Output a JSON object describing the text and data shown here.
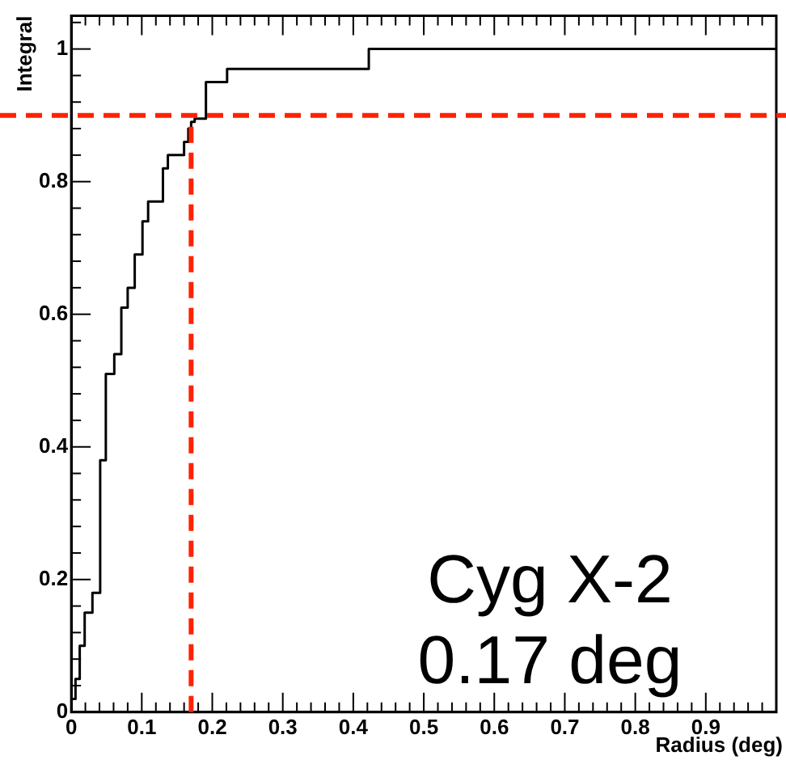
{
  "chart_data": {
    "type": "step",
    "xlabel": "Radius (deg)",
    "ylabel": "Integral",
    "x": [
      0,
      0.006,
      0.012,
      0.019,
      0.03,
      0.041,
      0.049,
      0.061,
      0.071,
      0.08,
      0.09,
      0.101,
      0.109,
      0.13,
      0.137,
      0.16,
      0.166,
      0.17,
      0.175,
      0.191,
      0.221,
      0.422,
      1.0
    ],
    "series": [
      {
        "color": "#000000",
        "values": [
          0.02,
          0.05,
          0.1,
          0.15,
          0.18,
          0.38,
          0.51,
          0.54,
          0.61,
          0.64,
          0.69,
          0.74,
          0.77,
          0.82,
          0.84,
          0.86,
          0.88,
          0.89,
          0.895,
          0.95,
          0.97,
          1.0,
          1.0
        ]
      }
    ],
    "xlim": [
      0,
      1
    ],
    "xticks": [
      0,
      0.1,
      0.2,
      0.3,
      0.4,
      0.5,
      0.6,
      0.7,
      0.8,
      0.9
    ],
    "ylim": [
      0,
      1.05
    ],
    "yticks": [
      0,
      0.2,
      0.4,
      0.6,
      0.8,
      1
    ],
    "ref_lines": [
      {
        "axis": "y",
        "value": 0.9,
        "color": "#ff2200",
        "line_style": "dashed"
      },
      {
        "axis": "x",
        "value": 0.17,
        "color": "#ff2200",
        "line_style": "dashed"
      }
    ],
    "annotations": [
      "Cyg X-2",
      "0.17 deg"
    ],
    "grid": false,
    "legend": false
  }
}
